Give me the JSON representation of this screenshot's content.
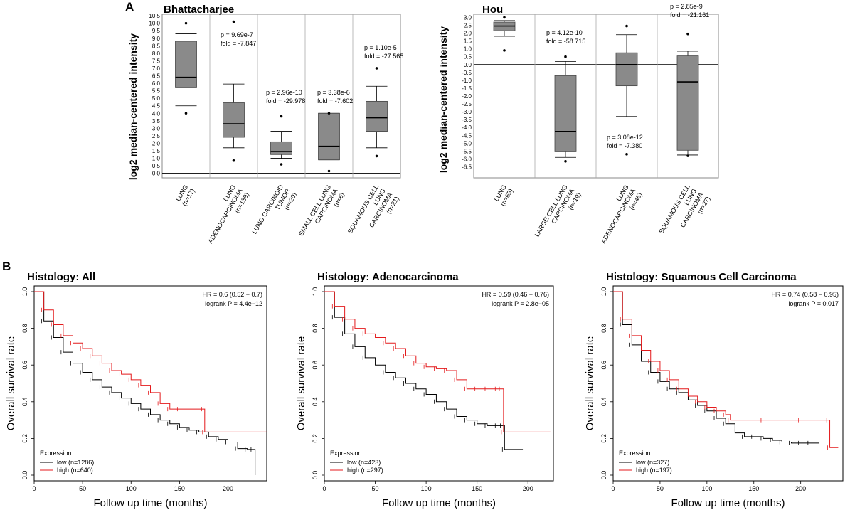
{
  "panels": {
    "a_label": "A",
    "b_label": "B"
  },
  "chart_data": [
    {
      "type": "box",
      "title": "Bhattacharjee",
      "ylabel": "log2 median-centered intensity",
      "ylim": [
        -0.3,
        10.6
      ],
      "yticks": [
        "0.0",
        "0.5",
        "1.0",
        "1.5",
        "2.0",
        "2.5",
        "3.0",
        "3.5",
        "4.0",
        "4.5",
        "5.0",
        "5.5",
        "6.0",
        "6.5",
        "7.0",
        "7.5",
        "8.0",
        "8.5",
        "9.0",
        "9.5",
        "10.0",
        "10.5"
      ],
      "baseline": 0,
      "groups": [
        {
          "lines": [
            "LUNG",
            "(n=17)"
          ],
          "stats": {
            "whisker_low": 4.5,
            "q1": 5.7,
            "median": 6.4,
            "q3": 8.8,
            "whisker_high": 9.3,
            "outliers": [
              10.0,
              4.0
            ]
          },
          "annotation": []
        },
        {
          "lines": [
            "LUNG",
            "ADENOCARCINOMA",
            "(n=139)"
          ],
          "stats": {
            "whisker_low": 1.7,
            "q1": 2.4,
            "median": 3.3,
            "q3": 4.7,
            "whisker_high": 5.95,
            "outliers": [
              10.1,
              0.85
            ]
          },
          "annotation": [
            "p = 9.69e-7",
            "fold = -7.847"
          ]
        },
        {
          "lines": [
            "LUNG CARCINOID",
            "TUMOR",
            "(n=20)"
          ],
          "stats": {
            "whisker_low": 1.0,
            "q1": 1.25,
            "median": 1.45,
            "q3": 2.1,
            "whisker_high": 2.8,
            "outliers": [
              3.8,
              0.6
            ]
          },
          "annotation": [
            "p = 2.96e-10",
            "fold = -29.978"
          ]
        },
        {
          "lines": [
            "SMALL CELL LUNG",
            "CARCINOMA",
            "(n=6)"
          ],
          "stats": {
            "whisker_low": 0.9,
            "q1": 0.9,
            "median": 1.8,
            "q3": 4.0,
            "whisker_high": 4.0,
            "outliers": [
              4.0,
              0.15
            ]
          },
          "annotation": [
            "p = 3.38e-6",
            "fold = -7.602"
          ]
        },
        {
          "lines": [
            "SQUAMOUS CELL",
            "LUNG",
            "CARCINOMA",
            "(n=21)"
          ],
          "stats": {
            "whisker_low": 1.7,
            "q1": 2.8,
            "median": 3.7,
            "q3": 4.8,
            "whisker_high": 5.8,
            "outliers": [
              7.0,
              1.15
            ]
          },
          "annotation": [
            "p = 1.10e-5",
            "fold = -27.565"
          ]
        }
      ]
    },
    {
      "type": "box",
      "title": "Hou",
      "ylabel": "log2 median-centered intensity",
      "ylim": [
        -7.2,
        3.2
      ],
      "yticks": [
        "3.0",
        "2.5",
        "2.0",
        "1.5",
        "1.0",
        "0.5",
        "0.0",
        "-0.5",
        "-1.0",
        "-1.5",
        "-2.0",
        "-2.5",
        "-3.0",
        "-3.5",
        "-4.0",
        "-4.5",
        "-5.0",
        "-5.5",
        "-6.0",
        "-6.5"
      ],
      "baseline": 0,
      "groups": [
        {
          "lines": [
            "LUNG",
            "(n=65)"
          ],
          "stats": {
            "whisker_low": 1.8,
            "q1": 2.15,
            "median": 2.45,
            "q3": 2.7,
            "whisker_high": 2.8,
            "outliers": [
              3.0,
              0.9
            ]
          },
          "annotation": []
        },
        {
          "lines": [
            "LARGE CELL LUNG",
            "CARCINOMA",
            "(n=19)"
          ],
          "stats": {
            "whisker_low": -5.9,
            "q1": -5.5,
            "median": -4.25,
            "q3": -0.7,
            "whisker_high": 0.2,
            "outliers": [
              0.5,
              -6.15
            ]
          },
          "annotation": [
            "p = 4.12e-10",
            "fold = -58.715"
          ]
        },
        {
          "lines": [
            "LUNG",
            "ADENOCARCINOMA",
            "(n=45)"
          ],
          "stats": {
            "whisker_low": -3.3,
            "q1": -1.35,
            "median": 0.0,
            "q3": 0.75,
            "whisker_high": 1.9,
            "outliers": [
              2.45,
              -5.7
            ]
          },
          "annotation": [
            "p = 3.08e-12",
            "fold = -7.380"
          ]
        },
        {
          "lines": [
            "SQUAMOUS CELL",
            "LUNG",
            "CARCINOMA",
            "(n=27)"
          ],
          "stats": {
            "whisker_low": -5.75,
            "q1": -5.45,
            "median": -1.1,
            "q3": 0.55,
            "whisker_high": 0.85,
            "outliers": [
              1.95,
              -5.8
            ]
          },
          "annotation": [
            "p = 2.85e-9",
            "fold = -21.161"
          ]
        }
      ]
    },
    {
      "type": "line",
      "subtype": "kaplan-meier",
      "title": "Histology: All",
      "xlabel": "Follow up time (months)",
      "ylabel": "Overall survival rate",
      "xlim": [
        0,
        240
      ],
      "xticks": [
        "0",
        "50",
        "100",
        "150",
        "200"
      ],
      "ylim": [
        0,
        1
      ],
      "yticks": [
        "0.0",
        "0.2",
        "0.4",
        "0.6",
        "0.8",
        "1.0"
      ],
      "stats": [
        "HR = 0.6 (0.52 − 0.7)",
        "logrank P = 4.4e−12"
      ],
      "legend_title": "Expression",
      "series": [
        {
          "name": "low (n=1286)",
          "color": "#000000",
          "x": [
            0,
            10,
            20,
            30,
            40,
            50,
            60,
            70,
            80,
            90,
            100,
            110,
            120,
            130,
            140,
            150,
            160,
            170,
            180,
            190,
            200,
            210,
            220,
            226,
            228
          ],
          "y": [
            1.0,
            0.84,
            0.75,
            0.67,
            0.61,
            0.56,
            0.52,
            0.48,
            0.45,
            0.42,
            0.39,
            0.36,
            0.33,
            0.3,
            0.28,
            0.26,
            0.245,
            0.235,
            0.21,
            0.195,
            0.18,
            0.145,
            0.14,
            0.14,
            0.0
          ]
        },
        {
          "name": "high (n=640)",
          "color": "#e41a1c",
          "x": [
            0,
            10,
            20,
            30,
            40,
            50,
            60,
            70,
            80,
            90,
            100,
            110,
            120,
            130,
            140,
            150,
            175,
            176,
            240
          ],
          "y": [
            1.0,
            0.9,
            0.82,
            0.76,
            0.72,
            0.69,
            0.65,
            0.61,
            0.57,
            0.55,
            0.52,
            0.49,
            0.45,
            0.39,
            0.36,
            0.36,
            0.36,
            0.235,
            0.235
          ]
        }
      ]
    },
    {
      "type": "line",
      "subtype": "kaplan-meier",
      "title": "Histology: Adenocarcinoma",
      "xlabel": "Follow up time (months)",
      "ylabel": "Overall survival rate",
      "xlim": [
        0,
        225
      ],
      "xticks": [
        "0",
        "50",
        "100",
        "150",
        "200"
      ],
      "ylim": [
        0,
        1
      ],
      "yticks": [
        "0.0",
        "0.2",
        "0.4",
        "0.6",
        "0.8",
        "1.0"
      ],
      "stats": [
        "HR = 0.59 (0.46 − 0.76)",
        "logrank P = 2.8e−05"
      ],
      "legend_title": "Expression",
      "series": [
        {
          "name": "low (n=423)",
          "color": "#000000",
          "x": [
            0,
            10,
            20,
            30,
            40,
            50,
            60,
            70,
            80,
            90,
            100,
            110,
            120,
            130,
            140,
            150,
            160,
            170,
            175,
            177,
            195
          ],
          "y": [
            1.0,
            0.86,
            0.77,
            0.7,
            0.64,
            0.6,
            0.56,
            0.53,
            0.5,
            0.47,
            0.44,
            0.4,
            0.36,
            0.32,
            0.3,
            0.28,
            0.27,
            0.27,
            0.27,
            0.14,
            0.14
          ]
        },
        {
          "name": "high (n=297)",
          "color": "#e41a1c",
          "x": [
            0,
            10,
            20,
            30,
            40,
            50,
            60,
            70,
            80,
            90,
            100,
            110,
            120,
            130,
            140,
            150,
            160,
            170,
            174,
            176,
            222
          ],
          "y": [
            1.0,
            0.92,
            0.85,
            0.8,
            0.77,
            0.75,
            0.72,
            0.69,
            0.65,
            0.61,
            0.59,
            0.58,
            0.57,
            0.52,
            0.47,
            0.47,
            0.47,
            0.47,
            0.47,
            0.235,
            0.235
          ]
        }
      ]
    },
    {
      "type": "line",
      "subtype": "kaplan-meier",
      "title": "Histology: Squamous Cell Carcinoma",
      "xlabel": "Follow up time (months)",
      "ylabel": "Overall survival rate",
      "xlim": [
        0,
        245
      ],
      "xticks": [
        "0",
        "50",
        "100",
        "150",
        "200"
      ],
      "ylim": [
        0,
        1
      ],
      "yticks": [
        "0.0",
        "0.2",
        "0.4",
        "0.6",
        "0.8",
        "1.0"
      ],
      "stats": [
        "HR = 0.74 (0.58 − 0.95)",
        "logrank P = 0.017"
      ],
      "legend_title": "Expression",
      "series": [
        {
          "name": "low (n=327)",
          "color": "#000000",
          "x": [
            0,
            10,
            20,
            30,
            40,
            50,
            60,
            70,
            80,
            90,
            100,
            110,
            120,
            130,
            140,
            150,
            160,
            170,
            180,
            190,
            200,
            210,
            220
          ],
          "y": [
            1.0,
            0.82,
            0.71,
            0.62,
            0.56,
            0.51,
            0.47,
            0.45,
            0.41,
            0.38,
            0.35,
            0.31,
            0.28,
            0.23,
            0.21,
            0.21,
            0.2,
            0.19,
            0.18,
            0.175,
            0.175,
            0.175,
            0.175
          ]
        },
        {
          "name": "high (n=197)",
          "color": "#e41a1c",
          "x": [
            0,
            10,
            20,
            30,
            40,
            50,
            60,
            70,
            80,
            90,
            100,
            110,
            120,
            125,
            130,
            160,
            200,
            230,
            231,
            240
          ],
          "y": [
            1.0,
            0.85,
            0.76,
            0.68,
            0.62,
            0.57,
            0.52,
            0.47,
            0.43,
            0.4,
            0.37,
            0.35,
            0.33,
            0.3,
            0.3,
            0.3,
            0.3,
            0.3,
            0.15,
            0.15
          ]
        }
      ]
    }
  ]
}
